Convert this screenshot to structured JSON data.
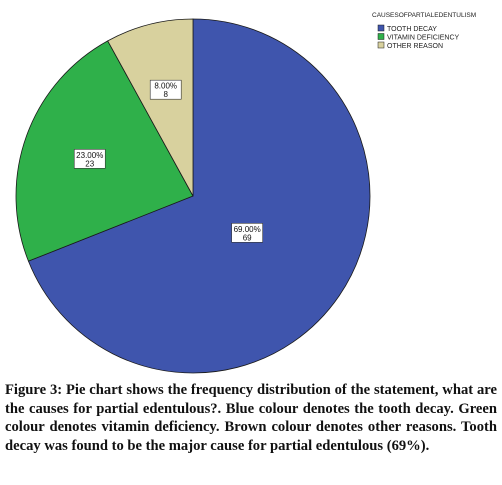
{
  "chart_data": {
    "type": "pie",
    "legend_title": "CAUSESOFPARTIALEDENTULISM",
    "legend_position": "top-right",
    "slices": [
      {
        "category": "TOOTH DECAY",
        "percent_label": "69.00%",
        "count": 69,
        "value": 69,
        "color": "#3f55ad"
      },
      {
        "category": "VITAMIN DEFICIENCY",
        "percent_label": "23.00%",
        "count": 23,
        "value": 23,
        "color": "#2fb04a"
      },
      {
        "category": "OTHER REASON",
        "percent_label": "8.00%",
        "count": 8,
        "value": 8,
        "color": "#d8d19e"
      }
    ]
  },
  "caption": {
    "label": "Figure 3:",
    "text": "Pie chart shows the frequency distribution of the statement, what are the causes for partial edentulous?. Blue colour denotes the tooth decay. Green colour denotes vitamin deficiency. Brown colour denotes other reasons. Tooth decay was found to be the major cause for partial edentulous (69%)."
  }
}
